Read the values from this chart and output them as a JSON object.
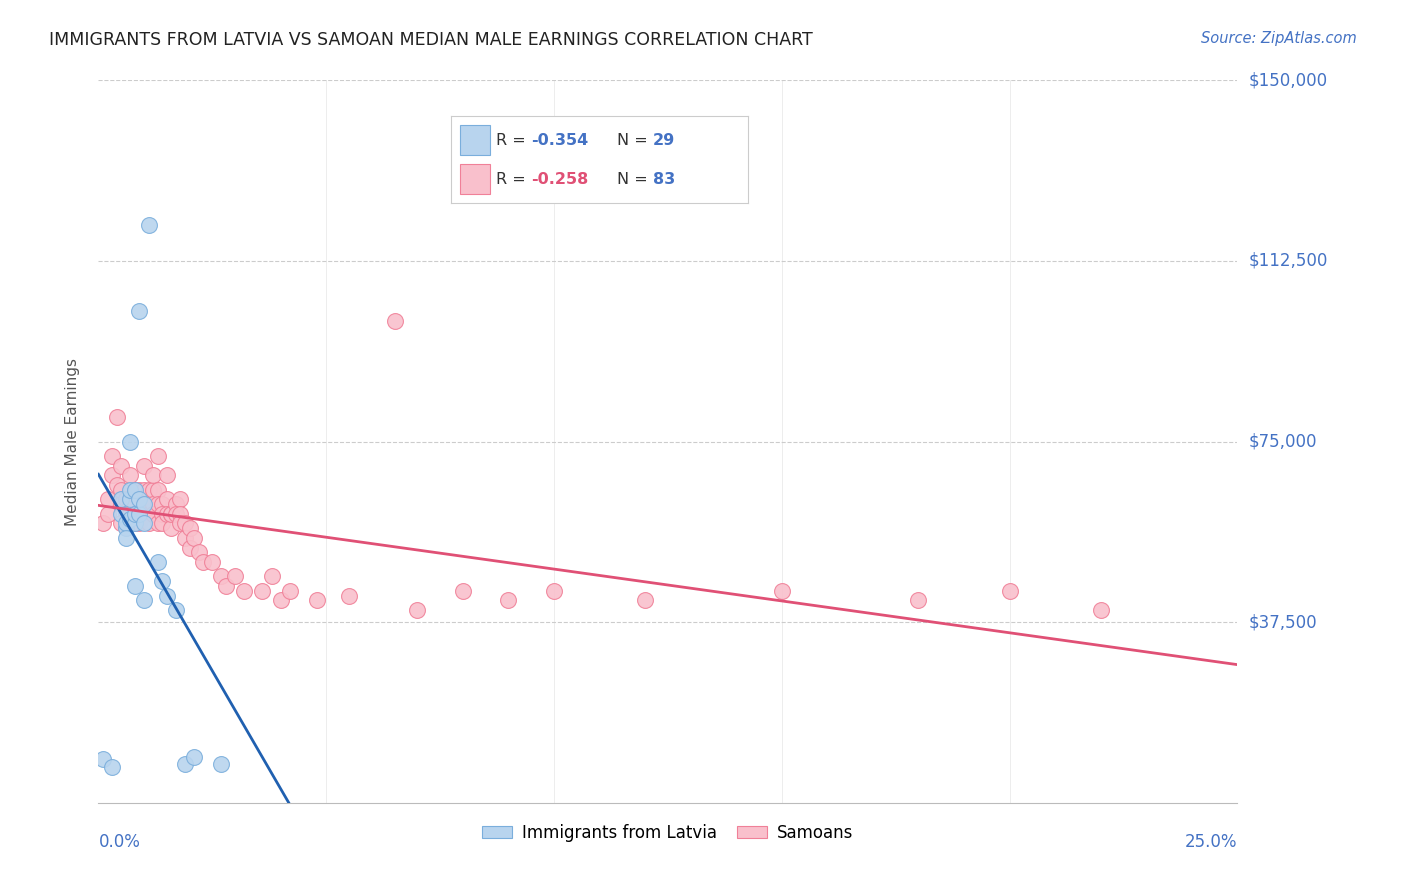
{
  "title": "IMMIGRANTS FROM LATVIA VS SAMOAN MEDIAN MALE EARNINGS CORRELATION CHART",
  "source": "Source: ZipAtlas.com",
  "ylabel": "Median Male Earnings",
  "xmin": 0.0,
  "xmax": 0.25,
  "ymin": 0,
  "ymax": 150000,
  "legend_r_latvia": "-0.354",
  "legend_n_latvia": "29",
  "legend_r_samoan": "-0.258",
  "legend_n_samoan": "83",
  "blue_scatter_fill": "#b8d4ee",
  "blue_scatter_edge": "#7aaedc",
  "pink_scatter_fill": "#f9c0cc",
  "pink_scatter_edge": "#f08098",
  "blue_line_color": "#2060b0",
  "pink_line_color": "#e05075",
  "ytick_vals": [
    37500,
    75000,
    112500,
    150000
  ],
  "ytick_labels": [
    "$37,500",
    "$75,000",
    "$112,500",
    "$150,000"
  ],
  "grid_color": "#cccccc",
  "title_color": "#222222",
  "source_color": "#4472c4",
  "axis_label_color": "#4472c4",
  "latvia_points": [
    [
      0.001,
      9000
    ],
    [
      0.003,
      7500
    ],
    [
      0.005,
      60000
    ],
    [
      0.005,
      63000
    ],
    [
      0.006,
      57000
    ],
    [
      0.006,
      58000
    ],
    [
      0.007,
      59000
    ],
    [
      0.007,
      63000
    ],
    [
      0.007,
      65000
    ],
    [
      0.007,
      75000
    ],
    [
      0.008,
      58000
    ],
    [
      0.008,
      60000
    ],
    [
      0.008,
      65000
    ],
    [
      0.009,
      60000
    ],
    [
      0.009,
      63000
    ],
    [
      0.009,
      102000
    ],
    [
      0.01,
      58000
    ],
    [
      0.01,
      62000
    ],
    [
      0.011,
      120000
    ],
    [
      0.013,
      50000
    ],
    [
      0.014,
      46000
    ],
    [
      0.015,
      43000
    ],
    [
      0.017,
      40000
    ],
    [
      0.019,
      8000
    ],
    [
      0.021,
      9500
    ],
    [
      0.027,
      8000
    ],
    [
      0.006,
      55000
    ],
    [
      0.008,
      45000
    ],
    [
      0.01,
      42000
    ]
  ],
  "samoan_points": [
    [
      0.001,
      58000
    ],
    [
      0.002,
      60000
    ],
    [
      0.002,
      63000
    ],
    [
      0.003,
      72000
    ],
    [
      0.003,
      68000
    ],
    [
      0.004,
      80000
    ],
    [
      0.004,
      66000
    ],
    [
      0.005,
      70000
    ],
    [
      0.005,
      62000
    ],
    [
      0.005,
      65000
    ],
    [
      0.006,
      63000
    ],
    [
      0.006,
      60000
    ],
    [
      0.007,
      63000
    ],
    [
      0.007,
      68000
    ],
    [
      0.007,
      62000
    ],
    [
      0.007,
      60000
    ],
    [
      0.008,
      65000
    ],
    [
      0.008,
      62000
    ],
    [
      0.008,
      58000
    ],
    [
      0.008,
      60000
    ],
    [
      0.009,
      63000
    ],
    [
      0.009,
      65000
    ],
    [
      0.009,
      60000
    ],
    [
      0.009,
      58000
    ],
    [
      0.01,
      70000
    ],
    [
      0.01,
      65000
    ],
    [
      0.01,
      62000
    ],
    [
      0.01,
      60000
    ],
    [
      0.011,
      65000
    ],
    [
      0.011,
      62000
    ],
    [
      0.011,
      60000
    ],
    [
      0.011,
      58000
    ],
    [
      0.012,
      65000
    ],
    [
      0.012,
      68000
    ],
    [
      0.012,
      62000
    ],
    [
      0.012,
      60000
    ],
    [
      0.013,
      72000
    ],
    [
      0.013,
      65000
    ],
    [
      0.013,
      62000
    ],
    [
      0.013,
      58000
    ],
    [
      0.014,
      62000
    ],
    [
      0.014,
      60000
    ],
    [
      0.014,
      58000
    ],
    [
      0.015,
      68000
    ],
    [
      0.015,
      63000
    ],
    [
      0.015,
      60000
    ],
    [
      0.016,
      60000
    ],
    [
      0.016,
      57000
    ],
    [
      0.016,
      60000
    ],
    [
      0.017,
      62000
    ],
    [
      0.017,
      60000
    ],
    [
      0.018,
      63000
    ],
    [
      0.018,
      60000
    ],
    [
      0.018,
      58000
    ],
    [
      0.019,
      58000
    ],
    [
      0.019,
      55000
    ],
    [
      0.02,
      57000
    ],
    [
      0.02,
      53000
    ],
    [
      0.021,
      55000
    ],
    [
      0.022,
      52000
    ],
    [
      0.023,
      50000
    ],
    [
      0.025,
      50000
    ],
    [
      0.027,
      47000
    ],
    [
      0.028,
      45000
    ],
    [
      0.03,
      47000
    ],
    [
      0.032,
      44000
    ],
    [
      0.036,
      44000
    ],
    [
      0.038,
      47000
    ],
    [
      0.04,
      42000
    ],
    [
      0.042,
      44000
    ],
    [
      0.048,
      42000
    ],
    [
      0.055,
      43000
    ],
    [
      0.065,
      100000
    ],
    [
      0.07,
      40000
    ],
    [
      0.08,
      44000
    ],
    [
      0.09,
      42000
    ],
    [
      0.1,
      44000
    ],
    [
      0.12,
      42000
    ],
    [
      0.15,
      44000
    ],
    [
      0.18,
      42000
    ],
    [
      0.2,
      44000
    ],
    [
      0.22,
      40000
    ],
    [
      0.005,
      58000
    ]
  ]
}
